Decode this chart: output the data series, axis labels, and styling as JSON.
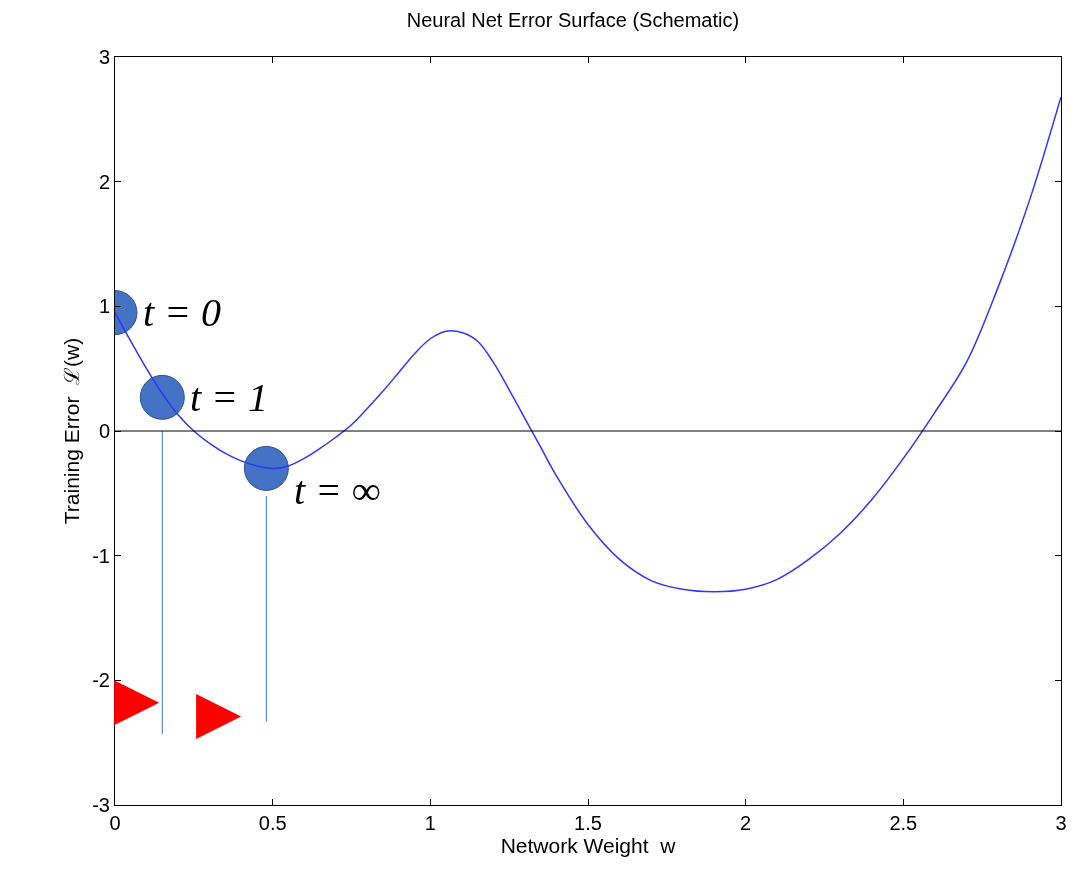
{
  "chart_data": {
    "type": "line",
    "title": "Neural Net Error Surface (Schematic)",
    "xlabel": "Network Weight  w",
    "ylabel": "Training Error  ℒ(w)",
    "xlim": [
      0,
      3
    ],
    "xticks": [
      0,
      0.5,
      1,
      1.5,
      2,
      2.5,
      3
    ],
    "ylim": [
      -3,
      3
    ],
    "yticks": [
      -3,
      -2,
      -1,
      0,
      1,
      2,
      3
    ],
    "ref_lines": [
      {
        "axis": "y",
        "value": 0,
        "color": "#000000"
      }
    ],
    "series": [
      {
        "color": "#3333ff",
        "x": [
          0,
          0.05,
          0.1,
          0.15,
          0.2,
          0.25,
          0.3,
          0.35,
          0.4,
          0.45,
          0.5,
          0.55,
          0.6,
          0.65,
          0.7,
          0.75,
          0.8,
          0.85,
          0.9,
          0.95,
          1.0,
          1.05,
          1.1,
          1.15,
          1.2,
          1.25,
          1.3,
          1.35,
          1.4,
          1.5,
          1.6,
          1.7,
          1.8,
          1.9,
          2.0,
          2.1,
          2.2,
          2.3,
          2.4,
          2.5,
          2.6,
          2.7,
          2.8,
          2.9,
          3.0
        ],
        "values": [
          0.95,
          0.72,
          0.5,
          0.3,
          0.13,
          0.0,
          -0.1,
          -0.18,
          -0.24,
          -0.28,
          -0.3,
          -0.28,
          -0.22,
          -0.14,
          -0.05,
          0.05,
          0.18,
          0.32,
          0.47,
          0.62,
          0.74,
          0.8,
          0.79,
          0.72,
          0.55,
          0.33,
          0.1,
          -0.13,
          -0.36,
          -0.75,
          -1.03,
          -1.2,
          -1.27,
          -1.29,
          -1.27,
          -1.19,
          -1.03,
          -0.82,
          -0.55,
          -0.22,
          0.15,
          0.55,
          1.15,
          1.85,
          2.68
        ]
      },
      {
        "color": "#4472c4",
        "x": [
          0.15,
          0.15
        ],
        "values": [
          0,
          -2.43
        ]
      },
      {
        "color": "#4472c4",
        "x": [
          0.48,
          0.48
        ],
        "values": [
          -0.52,
          -2.33
        ]
      },
      {
        "type": "scatter",
        "color": "#4472c4",
        "marker": "circle",
        "x": [
          0,
          0.15,
          0.48
        ],
        "values": [
          0.95,
          0.27,
          -0.3
        ]
      }
    ],
    "annotations": [
      {
        "text": "t = 0",
        "x": 0,
        "y": 0.95
      },
      {
        "text": "t = 1",
        "x": 0.15,
        "y": 0.27
      },
      {
        "text": "t = ∞",
        "x": 0.48,
        "y": -0.48
      }
    ]
  }
}
